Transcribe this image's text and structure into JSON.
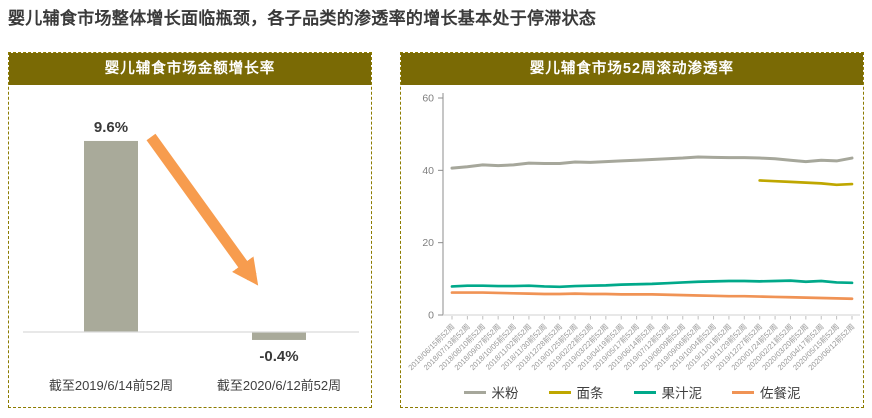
{
  "page_title": "婴儿辅食市场整体增长面临瓶颈，各子品类的渗透率的增长基本处于停滞状态",
  "colors": {
    "header_bg": "#7A6A05",
    "panel_border": "#8C7B00",
    "title_text": "#3A3A3A",
    "bar_fill": "#A9AA9A",
    "arrow": "#F79C4E",
    "axis_text": "#7F7F7F",
    "baseline": "#D9D9D9"
  },
  "left_panel": {
    "header": "婴儿辅食市场金额增长率"
  },
  "right_panel": {
    "header": "婴儿辅食市场52周滚动渗透率"
  },
  "chart_data": [
    {
      "type": "bar",
      "title": "婴儿辅食市场金额增长率",
      "categories": [
        "截至2019/6/14前52周",
        "截至2020/6/12前52周"
      ],
      "values": [
        9.6,
        -0.4
      ],
      "value_labels": [
        "9.6%",
        "-0.4%"
      ],
      "bar_color": "#A9AA9A",
      "annotation": "orange declining arrow",
      "ylabel": "",
      "xlabel": "",
      "grid": false
    },
    {
      "type": "line",
      "title": "婴儿辅食市场52周滚动渗透率",
      "ylim": [
        0,
        60
      ],
      "yticks": [
        0,
        20,
        40,
        60
      ],
      "grid": false,
      "legend_position": "bottom",
      "x": [
        "2018/06/15前52周",
        "2018/07/13前52周",
        "2018/08/10前52周",
        "2018/09/07前52周",
        "2018/10/05前52周",
        "2018/11/02前52周",
        "2018/11/30前52周",
        "2018/12/28前52周",
        "2019/01/25前52周",
        "2019/02/22前52周",
        "2019/03/22前52周",
        "2019/04/19前52周",
        "2019/05/17前52周",
        "2019/06/14前52周",
        "2019/07/12前52周",
        "2019/08/09前52周",
        "2019/09/06前52周",
        "2019/10/04前52周",
        "2019/11/01前52周",
        "2019/11/29前52周",
        "2019/12/27前52周",
        "2020/01/24前52周",
        "2020/02/21前52周",
        "2020/03/20前52周",
        "2020/04/17前52周",
        "2020/05/15前52周",
        "2020/06/12前52周"
      ],
      "series": [
        {
          "name": "米粉",
          "color": "#A6A79B",
          "values": [
            40.6,
            41.0,
            41.5,
            41.3,
            41.5,
            42.0,
            41.9,
            41.9,
            42.3,
            42.2,
            42.4,
            42.6,
            42.8,
            43.0,
            43.2,
            43.4,
            43.7,
            43.6,
            43.5,
            43.5,
            43.4,
            43.2,
            42.8,
            42.4,
            42.8,
            42.6,
            43.4
          ]
        },
        {
          "name": "面条",
          "color": "#BFA700",
          "values": [
            null,
            null,
            null,
            null,
            null,
            null,
            null,
            null,
            null,
            null,
            null,
            null,
            null,
            null,
            null,
            null,
            null,
            null,
            null,
            null,
            37.2,
            37.0,
            36.8,
            36.6,
            36.4,
            36.0,
            36.2
          ]
        },
        {
          "name": "果汁泥",
          "color": "#00A98A",
          "values": [
            7.9,
            8.1,
            8.1,
            8.0,
            8.0,
            8.1,
            7.9,
            7.8,
            8.0,
            8.1,
            8.2,
            8.4,
            8.5,
            8.6,
            8.8,
            9.0,
            9.2,
            9.3,
            9.4,
            9.4,
            9.3,
            9.4,
            9.5,
            9.2,
            9.4,
            9.0,
            8.9
          ]
        },
        {
          "name": "佐餐泥",
          "color": "#F09355",
          "values": [
            6.2,
            6.2,
            6.2,
            6.1,
            6.0,
            5.9,
            5.8,
            5.8,
            5.9,
            5.8,
            5.8,
            5.7,
            5.7,
            5.7,
            5.6,
            5.5,
            5.4,
            5.3,
            5.2,
            5.2,
            5.1,
            5.0,
            4.9,
            4.8,
            4.7,
            4.6,
            4.5
          ]
        }
      ]
    }
  ]
}
